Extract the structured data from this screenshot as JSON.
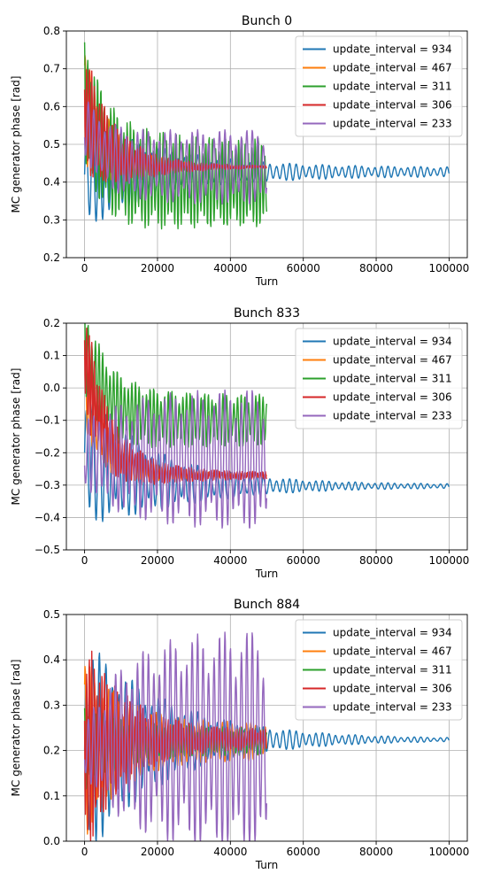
{
  "chart_data": [
    {
      "type": "line",
      "title": "Bunch 0",
      "xlabel": "Turn",
      "ylabel": "MC generator phase [rad]",
      "xlim": [
        -5000,
        105000
      ],
      "ylim": [
        0.2,
        0.8
      ],
      "xticks": [
        0,
        20000,
        40000,
        60000,
        80000,
        100000
      ],
      "yticks": [
        0.2,
        0.3,
        0.4,
        0.5,
        0.6,
        0.7,
        0.8
      ],
      "grid": true,
      "legend_position": "top-right",
      "series": [
        {
          "name": "update_interval = 934",
          "color": "#1f77b4",
          "x_end": 100000,
          "start": 0.42,
          "target": 0.427,
          "amp0": 0.15,
          "amp_final": 0.012,
          "period": 1800,
          "clip_low": 0.2,
          "clip_high": 0.8
        },
        {
          "name": "update_interval = 467",
          "color": "#ff7f0e",
          "x_end": 50000,
          "start": 0.6,
          "target": 0.44,
          "amp0": 0.15,
          "amp_final": 0.0,
          "period": 1300,
          "clip_low": 0.2,
          "clip_high": 0.8
        },
        {
          "name": "update_interval = 311",
          "color": "#2ca02c",
          "x_end": 50000,
          "start": 0.62,
          "target": 0.4,
          "amp0": 0.18,
          "amp_final": 0.12,
          "period": 900,
          "clip_low": 0.2,
          "clip_high": 0.77
        },
        {
          "name": "update_interval = 306",
          "color": "#d62728",
          "x_end": 50000,
          "start": 0.6,
          "target": 0.44,
          "amp0": 0.17,
          "amp_final": 0.002,
          "period": 700,
          "clip_low": 0.2,
          "clip_high": 0.8
        },
        {
          "name": "update_interval = 233",
          "color": "#9467bd",
          "x_end": 50000,
          "start": 0.55,
          "target": 0.44,
          "amp0": 0.08,
          "amp_final": 0.1,
          "period": 1500,
          "clip_low": 0.2,
          "clip_high": 0.8
        }
      ]
    },
    {
      "type": "line",
      "title": "Bunch 833",
      "xlabel": "Turn",
      "ylabel": "MC generator phase [rad]",
      "xlim": [
        -5000,
        105000
      ],
      "ylim": [
        -0.5,
        0.2
      ],
      "xticks": [
        0,
        20000,
        40000,
        60000,
        80000,
        100000
      ],
      "yticks": [
        -0.5,
        -0.4,
        -0.3,
        -0.2,
        -0.1,
        0.0,
        0.1,
        0.2
      ],
      "grid": true,
      "legend_position": "top-right",
      "series": [
        {
          "name": "update_interval = 934",
          "color": "#1f77b4",
          "x_end": 100000,
          "start": -0.2,
          "target": -0.303,
          "amp0": 0.22,
          "amp_final": 0.005,
          "period": 1800,
          "clip_low": -0.5,
          "clip_high": 0.2
        },
        {
          "name": "update_interval = 467",
          "color": "#ff7f0e",
          "x_end": 50000,
          "start": 0.0,
          "target": -0.27,
          "amp0": 0.12,
          "amp_final": 0.005,
          "period": 1300,
          "clip_low": -0.5,
          "clip_high": 0.2
        },
        {
          "name": "update_interval = 311",
          "color": "#2ca02c",
          "x_end": 50000,
          "start": 0.12,
          "target": -0.1,
          "amp0": 0.15,
          "amp_final": 0.08,
          "period": 1000,
          "clip_low": -0.5,
          "clip_high": 0.2
        },
        {
          "name": "update_interval = 306",
          "color": "#d62728",
          "x_end": 50000,
          "start": 0.1,
          "target": -0.27,
          "amp0": 0.18,
          "amp_final": 0.01,
          "period": 700,
          "clip_low": -0.5,
          "clip_high": 0.2
        },
        {
          "name": "update_interval = 233",
          "color": "#9467bd",
          "x_end": 50000,
          "start": -0.2,
          "target": -0.22,
          "amp0": 0.1,
          "amp_final": 0.22,
          "period": 1500,
          "clip_low": -0.5,
          "clip_high": 0.2
        }
      ]
    },
    {
      "type": "line",
      "title": "Bunch 884",
      "xlabel": "Turn",
      "ylabel": "MC generator phase [rad]",
      "xlim": [
        -5000,
        105000
      ],
      "ylim": [
        0.0,
        0.5
      ],
      "xticks": [
        0,
        20000,
        40000,
        60000,
        80000,
        100000
      ],
      "yticks": [
        0.0,
        0.1,
        0.2,
        0.3,
        0.4,
        0.5
      ],
      "grid": true,
      "legend_position": "top-right",
      "series": [
        {
          "name": "update_interval = 934",
          "color": "#1f77b4",
          "x_end": 100000,
          "start": 0.2,
          "target": 0.224,
          "amp0": 0.25,
          "amp_final": 0.002,
          "period": 1800,
          "clip_low": 0.0,
          "clip_high": 0.5
        },
        {
          "name": "update_interval = 467",
          "color": "#ff7f0e",
          "x_end": 50000,
          "start": 0.2,
          "target": 0.22,
          "amp0": 0.2,
          "amp_final": 0.04,
          "period": 1300,
          "clip_low": 0.0,
          "clip_high": 0.5
        },
        {
          "name": "update_interval = 311",
          "color": "#2ca02c",
          "x_end": 50000,
          "start": 0.2,
          "target": 0.22,
          "amp0": 0.1,
          "amp_final": 0.03,
          "period": 1000,
          "clip_low": 0.0,
          "clip_high": 0.5
        },
        {
          "name": "update_interval = 306",
          "color": "#d62728",
          "x_end": 50000,
          "start": 0.2,
          "target": 0.225,
          "amp0": 0.25,
          "amp_final": 0.02,
          "period": 700,
          "clip_low": 0.0,
          "clip_high": 0.5
        },
        {
          "name": "update_interval = 233",
          "color": "#9467bd",
          "x_end": 50000,
          "start": 0.2,
          "target": 0.22,
          "amp0": 0.05,
          "amp_final": 0.25,
          "period": 1500,
          "clip_low": 0.0,
          "clip_high": 0.5
        }
      ]
    }
  ]
}
